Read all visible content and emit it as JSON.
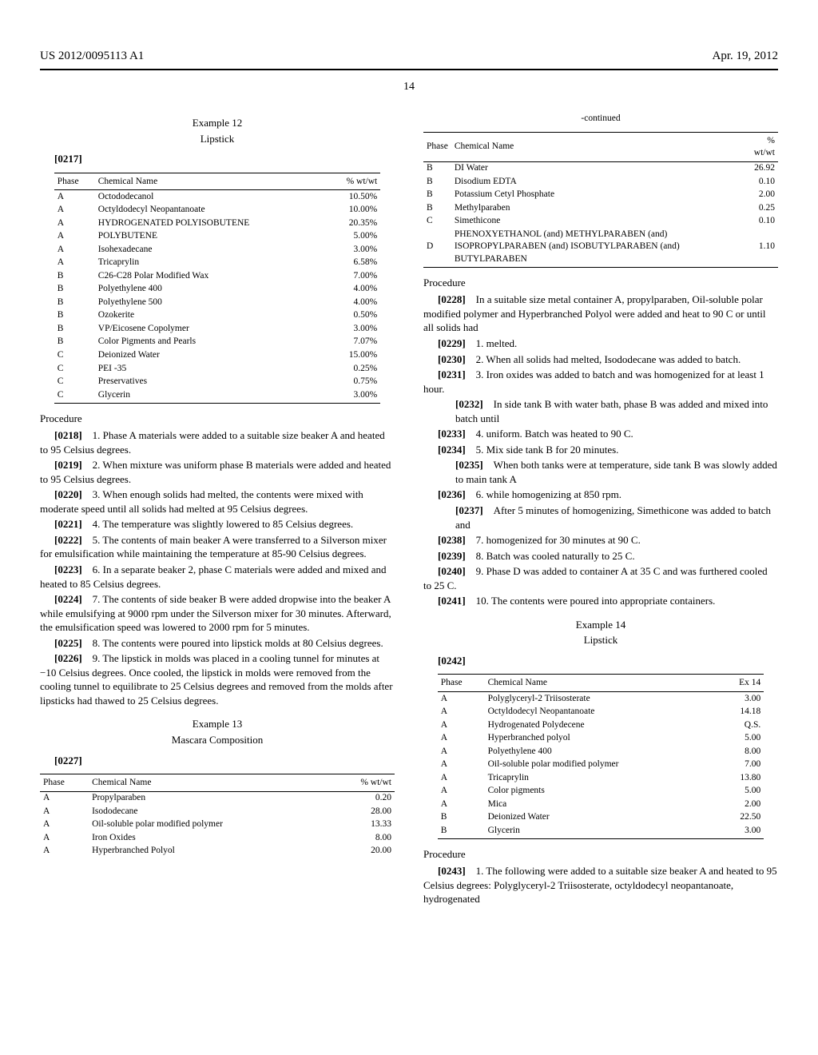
{
  "header": {
    "left": "US 2012/0095113 A1",
    "right": "Apr. 19, 2012"
  },
  "page_number": "14",
  "left": {
    "ex12": {
      "title": "Example 12",
      "sub": "Lipstick",
      "para": "[0217]"
    },
    "table12": {
      "cols": [
        "Phase",
        "Chemical Name",
        "% wt/wt"
      ],
      "rows": [
        [
          "A",
          "Octododecanol",
          "10.50%"
        ],
        [
          "A",
          "Octyldodecyl Neopantanoate",
          "10.00%"
        ],
        [
          "A",
          "HYDROGENATED POLYISOBUTENE",
          "20.35%"
        ],
        [
          "A",
          "POLYBUTENE",
          "5.00%"
        ],
        [
          "A",
          "Isohexadecane",
          "3.00%"
        ],
        [
          "A",
          "Tricaprylin",
          "6.58%"
        ],
        [
          "B",
          "C26-C28 Polar Modified Wax",
          "7.00%"
        ],
        [
          "B",
          "Polyethylene 400",
          "4.00%"
        ],
        [
          "B",
          "Polyethylene 500",
          "4.00%"
        ],
        [
          "B",
          "Ozokerite",
          "0.50%"
        ],
        [
          "B",
          "VP/Eicosene Copolymer",
          "3.00%"
        ],
        [
          "B",
          "Color Pigments and Pearls",
          "7.07%"
        ],
        [
          "C",
          "Deionized Water",
          "15.00%"
        ],
        [
          "C",
          "PEI -35",
          "0.25%"
        ],
        [
          "C",
          "Preservatives",
          "0.75%"
        ],
        [
          "C",
          "Glycerin",
          "3.00%"
        ]
      ]
    },
    "proc12_head": "Procedure",
    "proc12": [
      {
        "n": "[0218]",
        "t": "1. Phase A materials were added to a suitable size beaker A and heated to 95 Celsius degrees."
      },
      {
        "n": "[0219]",
        "t": "2. When mixture was uniform phase B materials were added and heated to 95 Celsius degrees."
      },
      {
        "n": "[0220]",
        "t": "3. When enough solids had melted, the contents were mixed with moderate speed until all solids had melted at 95 Celsius degrees."
      },
      {
        "n": "[0221]",
        "t": "4. The temperature was slightly lowered to 85 Celsius degrees."
      },
      {
        "n": "[0222]",
        "t": "5. The contents of main beaker A were transferred to a Silverson mixer for emulsification while maintaining the temperature at 85-90 Celsius degrees."
      },
      {
        "n": "[0223]",
        "t": "6. In a separate beaker 2, phase C materials were added and mixed and heated to 85 Celsius degrees."
      },
      {
        "n": "[0224]",
        "t": "7. The contents of side beaker B were added dropwise into the beaker A while emulsifying at 9000 rpm under the Silverson mixer for 30 minutes. Afterward, the emulsification speed was lowered to 2000 rpm for 5 minutes."
      },
      {
        "n": "[0225]",
        "t": "8. The contents were poured into lipstick molds at 80 Celsius degrees."
      },
      {
        "n": "[0226]",
        "t": "9. The lipstick in molds was placed in a cooling tunnel for minutes at −10 Celsius degrees. Once cooled, the lipstick in molds were removed from the cooling tunnel to equilibrate to 25 Celsius degrees and removed from the molds after lipsticks had thawed to 25 Celsius degrees."
      }
    ],
    "ex13": {
      "title": "Example 13",
      "sub": "Mascara Composition",
      "para": "[0227]"
    },
    "table13": {
      "cols": [
        "Phase",
        "Chemical Name",
        "% wt/wt"
      ],
      "rows": [
        [
          "A",
          "Propylparaben",
          "0.20"
        ],
        [
          "A",
          "Isododecane",
          "28.00"
        ],
        [
          "A",
          "Oil-soluble polar modified polymer",
          "13.33"
        ],
        [
          "A",
          "Iron Oxides",
          "8.00"
        ],
        [
          "A",
          "Hyperbranched Polyol",
          "20.00"
        ]
      ]
    }
  },
  "right": {
    "continued": "-continued",
    "table13b": {
      "cols": [
        "Phase",
        "Chemical Name",
        "% wt/wt"
      ],
      "rows": [
        [
          "B",
          "DI Water",
          "26.92"
        ],
        [
          "B",
          "Disodium EDTA",
          "0.10"
        ],
        [
          "B",
          "Potassium Cetyl Phosphate",
          "2.00"
        ],
        [
          "B",
          "Methylparaben",
          "0.25"
        ],
        [
          "C",
          "Simethicone",
          "0.10"
        ],
        [
          "D",
          "PHENOXYETHANOL (and) METHYLPARABEN (and) ISOPROPYLPARABEN (and) ISOBUTYLPARABEN (and) BUTYLPARABEN",
          "1.10"
        ]
      ]
    },
    "proc13_head": "Procedure",
    "proc13": [
      {
        "n": "[0228]",
        "t": "In a suitable size metal container A, propylparaben, Oil-soluble polar modified polymer and Hyperbranched Polyol were added and heat to 90 C or until all solids had",
        "sub": false
      },
      {
        "n": "[0229]",
        "t": "1. melted.",
        "sub": false
      },
      {
        "n": "[0230]",
        "t": "2. When all solids had melted, Isododecane was added to batch.",
        "sub": false
      },
      {
        "n": "[0231]",
        "t": "3. Iron oxides was added to batch and was homogenized for at least 1 hour.",
        "sub": false
      },
      {
        "n": "[0232]",
        "t": "In side tank B with water bath, phase B was added and mixed into batch until",
        "sub": true
      },
      {
        "n": "[0233]",
        "t": "4. uniform. Batch was heated to 90 C.",
        "sub": false
      },
      {
        "n": "[0234]",
        "t": "5. Mix side tank B for 20 minutes.",
        "sub": false
      },
      {
        "n": "[0235]",
        "t": "When both tanks were at temperature, side tank B was slowly added to main tank A",
        "sub": true
      },
      {
        "n": "[0236]",
        "t": "6. while homogenizing at 850 rpm.",
        "sub": false
      },
      {
        "n": "[0237]",
        "t": "After 5 minutes of homogenizing, Simethicone was added to batch and",
        "sub": true
      },
      {
        "n": "[0238]",
        "t": "7. homogenized for 30 minutes at 90 C.",
        "sub": false
      },
      {
        "n": "[0239]",
        "t": "8. Batch was cooled naturally to 25 C.",
        "sub": false
      },
      {
        "n": "[0240]",
        "t": "9. Phase D was added to container A at 35 C and was furthered cooled to 25 C.",
        "sub": false
      },
      {
        "n": "[0241]",
        "t": "10. The contents were poured into appropriate containers.",
        "sub": false
      }
    ],
    "ex14": {
      "title": "Example 14",
      "sub": "Lipstick",
      "para": "[0242]"
    },
    "table14": {
      "cols": [
        "Phase",
        "Chemical Name",
        "Ex 14"
      ],
      "rows": [
        [
          "A",
          "Polyglyceryl-2 Triisosterate",
          "3.00"
        ],
        [
          "A",
          "Octyldodecyl Neopantanoate",
          "14.18"
        ],
        [
          "A",
          "Hydrogenated Polydecene",
          "Q.S."
        ],
        [
          "A",
          "Hyperbranched polyol",
          "5.00"
        ],
        [
          "A",
          "Polyethylene 400",
          "8.00"
        ],
        [
          "A",
          "Oil-soluble polar modified polymer",
          "7.00"
        ],
        [
          "A",
          "Tricaprylin",
          "13.80"
        ],
        [
          "A",
          "Color pigments",
          "5.00"
        ],
        [
          "A",
          "Mica",
          "2.00"
        ],
        [
          "B",
          "Deionized Water",
          "22.50"
        ],
        [
          "B",
          "Glycerin",
          "3.00"
        ]
      ]
    },
    "proc14_head": "Procedure",
    "proc14": [
      {
        "n": "[0243]",
        "t": "1. The following were added to a suitable size beaker A and heated to 95 Celsius degrees: Polyglyceryl-2 Triisosterate, octyldodecyl neopantanoate, hydrogenated"
      }
    ]
  }
}
